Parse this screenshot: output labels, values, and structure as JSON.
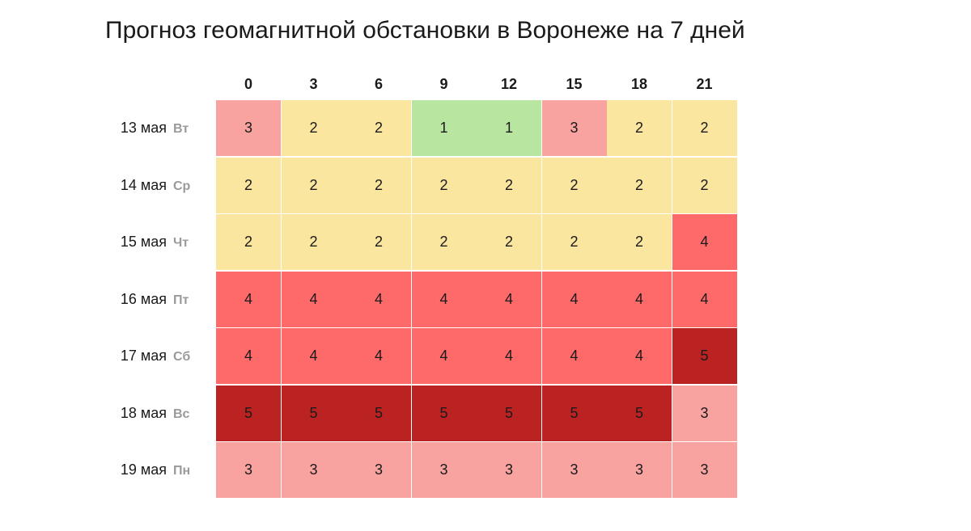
{
  "title": "Прогноз геомагнитной обстановки в Воронеже на 7 дней",
  "colors": {
    "1": "#b8e6a0",
    "2": "#fbe69f",
    "3": "#f9a3a1",
    "4": "#fd6a69",
    "5": "#bb2323"
  },
  "chart_data": {
    "type": "heatmap",
    "title": "Прогноз геомагнитной обстановки в Воронеже на 7 дней",
    "x": [
      "0",
      "3",
      "6",
      "9",
      "12",
      "15",
      "18",
      "21"
    ],
    "rows": [
      {
        "date": "13 мая",
        "dow": "Вт",
        "values": [
          3,
          2,
          2,
          1,
          1,
          3,
          2,
          2
        ]
      },
      {
        "date": "14 мая",
        "dow": "Ср",
        "values": [
          2,
          2,
          2,
          2,
          2,
          2,
          2,
          2
        ]
      },
      {
        "date": "15 мая",
        "dow": "Чт",
        "values": [
          2,
          2,
          2,
          2,
          2,
          2,
          2,
          4
        ]
      },
      {
        "date": "16 мая",
        "dow": "Пт",
        "values": [
          4,
          4,
          4,
          4,
          4,
          4,
          4,
          4
        ]
      },
      {
        "date": "17 мая",
        "dow": "Сб",
        "values": [
          4,
          4,
          4,
          4,
          4,
          4,
          4,
          5
        ]
      },
      {
        "date": "18 мая",
        "dow": "Вс",
        "values": [
          5,
          5,
          5,
          5,
          5,
          5,
          5,
          3
        ]
      },
      {
        "date": "19 мая",
        "dow": "Пн",
        "values": [
          3,
          3,
          3,
          3,
          3,
          3,
          3,
          3
        ]
      }
    ]
  }
}
